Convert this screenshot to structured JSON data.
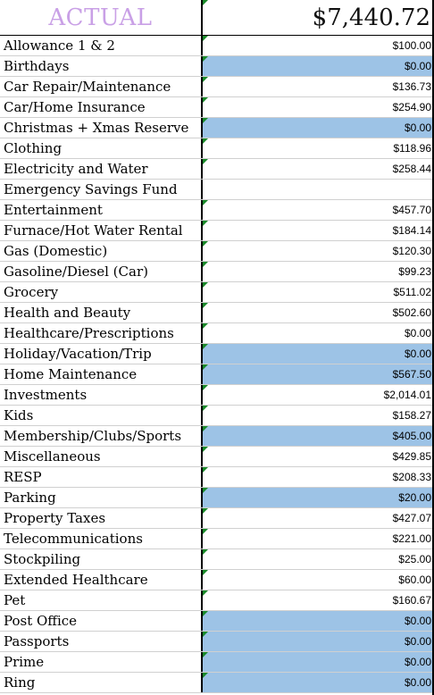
{
  "header": {
    "label": "ACTUAL",
    "total": "$7,440.72"
  },
  "rows": [
    {
      "label": "Allowance 1 & 2",
      "value": "$100.00",
      "highlight": false
    },
    {
      "label": "Birthdays",
      "value": "$0.00",
      "highlight": true
    },
    {
      "label": "Car Repair/Maintenance",
      "value": "$136.73",
      "highlight": false
    },
    {
      "label": "Car/Home Insurance",
      "value": "$254.90",
      "highlight": false
    },
    {
      "label": "Christmas + Xmas Reserve",
      "value": "$0.00",
      "highlight": true
    },
    {
      "label": "Clothing",
      "value": "$118.96",
      "highlight": false
    },
    {
      "label": "Electricity and Water",
      "value": "$258.44",
      "highlight": false
    },
    {
      "label": "Emergency Savings Fund",
      "value": "",
      "highlight": false
    },
    {
      "label": "Entertainment",
      "value": "$457.70",
      "highlight": false
    },
    {
      "label": "Furnace/Hot Water Rental",
      "value": "$184.14",
      "highlight": false
    },
    {
      "label": "Gas (Domestic)",
      "value": "$120.30",
      "highlight": false
    },
    {
      "label": "Gasoline/Diesel (Car)",
      "value": "$99.23",
      "highlight": false
    },
    {
      "label": "Grocery",
      "value": "$511.02",
      "highlight": false
    },
    {
      "label": "Health and Beauty",
      "value": "$502.60",
      "highlight": false
    },
    {
      "label": "Healthcare/Prescriptions",
      "value": "$0.00",
      "highlight": false
    },
    {
      "label": "Holiday/Vacation/Trip",
      "value": "$0.00",
      "highlight": true
    },
    {
      "label": "Home Maintenance",
      "value": "$567.50",
      "highlight": true
    },
    {
      "label": "Investments",
      "value": "$2,014.01",
      "highlight": false
    },
    {
      "label": "Kids",
      "value": "$158.27",
      "highlight": false
    },
    {
      "label": "Membership/Clubs/Sports",
      "value": "$405.00",
      "highlight": true
    },
    {
      "label": "Miscellaneous",
      "value": "$429.85",
      "highlight": false
    },
    {
      "label": "RESP",
      "value": "$208.33",
      "highlight": false
    },
    {
      "label": "Parking",
      "value": "$20.00",
      "highlight": true
    },
    {
      "label": "Property Taxes",
      "value": "$427.07",
      "highlight": false
    },
    {
      "label": "Telecommunications",
      "value": "$221.00",
      "highlight": false
    },
    {
      "label": "Stockpiling",
      "value": "$25.00",
      "highlight": false
    },
    {
      "label": "Extended Healthcare",
      "value": "$60.00",
      "highlight": false
    },
    {
      "label": "Pet",
      "value": "$160.67",
      "highlight": false
    },
    {
      "label": "Post Office",
      "value": "$0.00",
      "highlight": true
    },
    {
      "label": "Passports",
      "value": "$0.00",
      "highlight": true
    },
    {
      "label": "Prime",
      "value": "$0.00",
      "highlight": true
    },
    {
      "label": "Ring",
      "value": "$0.00",
      "highlight": true
    }
  ],
  "colors": {
    "header_label": "#c9a0e6",
    "highlight": "#9dc3e6",
    "comment_marker": "#1a8a2a"
  }
}
